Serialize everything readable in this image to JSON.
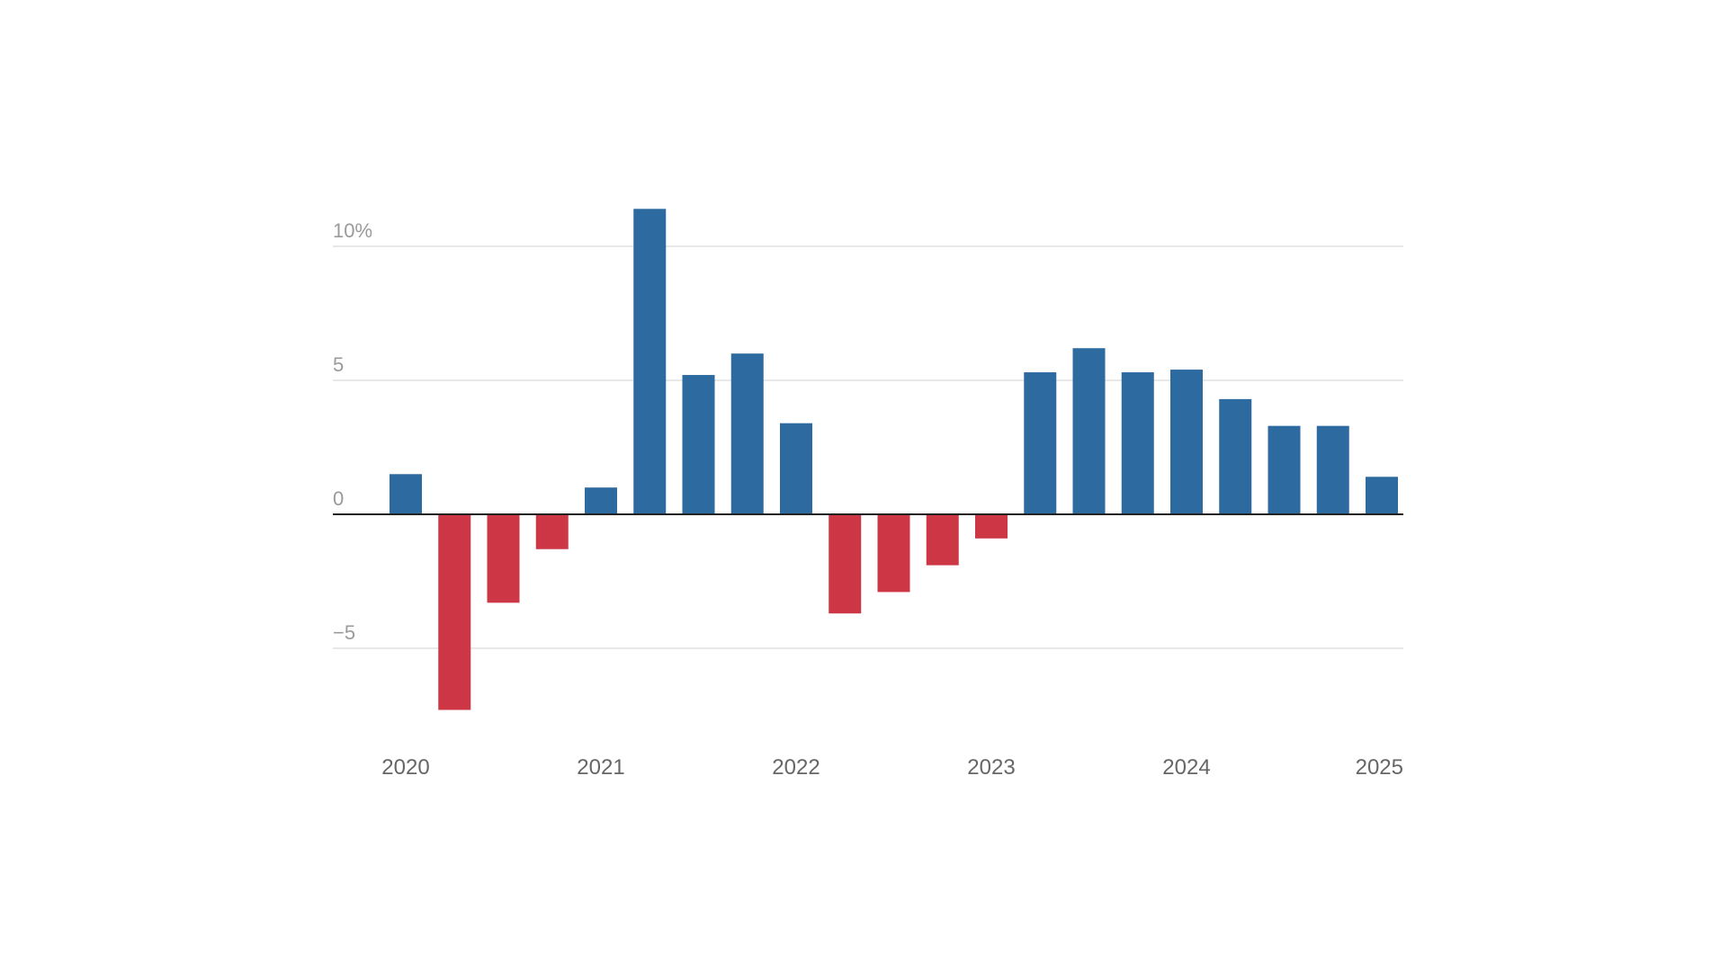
{
  "chart_data": {
    "type": "bar",
    "title": "",
    "xlabel": "",
    "ylabel": "",
    "unit": "%",
    "categories": [
      "2020 Q1",
      "2020 Q2",
      "2020 Q3",
      "2020 Q4",
      "2021 Q1",
      "2021 Q2",
      "2021 Q3",
      "2021 Q4",
      "2022 Q1",
      "2022 Q2",
      "2022 Q3",
      "2022 Q4",
      "2023 Q1",
      "2023 Q2",
      "2023 Q3",
      "2023 Q4",
      "2024 Q1",
      "2024 Q2",
      "2024 Q3",
      "2024 Q4",
      "2025 Q1"
    ],
    "values": [
      1.5,
      -7.3,
      -3.3,
      -1.3,
      1.0,
      11.4,
      5.2,
      6.0,
      3.4,
      -3.7,
      -2.9,
      -1.9,
      -0.9,
      5.3,
      6.2,
      5.3,
      5.4,
      4.3,
      3.3,
      3.3,
      1.4
    ],
    "ylim": [
      -8.5,
      12.5
    ],
    "y_ticks": [
      {
        "value": 10,
        "label": "10%"
      },
      {
        "value": 5,
        "label": "5"
      },
      {
        "value": 0,
        "label": "0"
      },
      {
        "value": -5,
        "label": "−5"
      }
    ],
    "x_ticks": [
      {
        "index": 0,
        "label": "2020"
      },
      {
        "index": 4,
        "label": "2021"
      },
      {
        "index": 8,
        "label": "2022"
      },
      {
        "index": 12,
        "label": "2023"
      },
      {
        "index": 16,
        "label": "2024"
      },
      {
        "index": 20,
        "label": "2025",
        "align": "end"
      }
    ],
    "grid": true,
    "legend": "none",
    "colors": {
      "positive": "#2d6aa0",
      "negative": "#cc3645",
      "grid": "#e1e1e1",
      "zero_line": "#222222",
      "y_tick_text": "#9a9a9a",
      "x_tick_text": "#666666"
    }
  }
}
